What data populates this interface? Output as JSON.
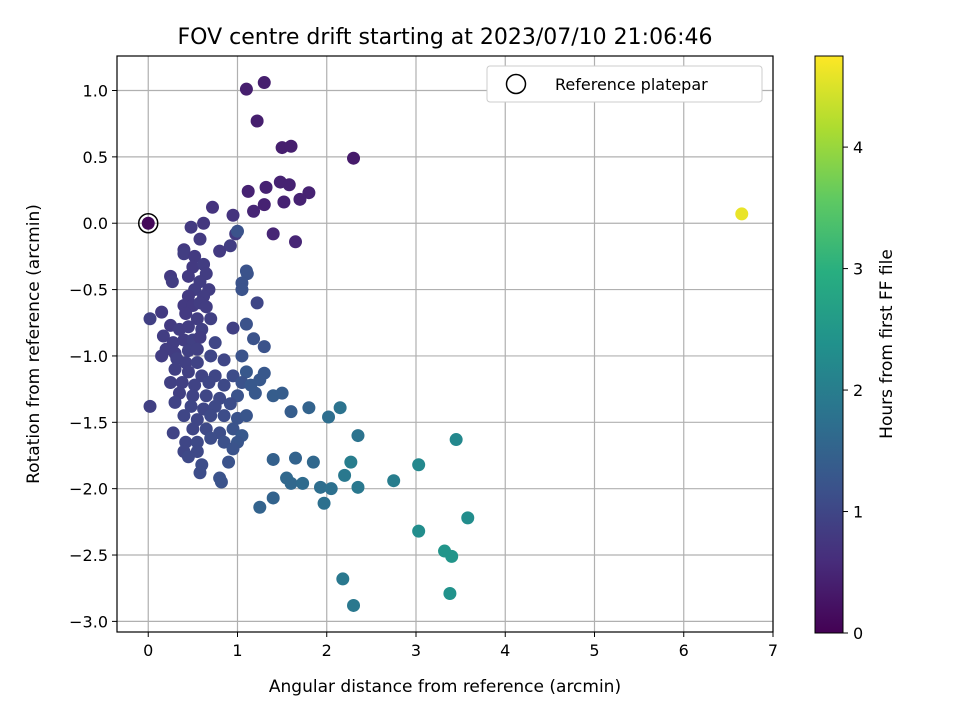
{
  "chart_data": {
    "type": "scatter",
    "title": "FOV centre drift starting at 2023/07/10 21:06:46",
    "xlabel": "Angular distance from reference (arcmin)",
    "ylabel": "Rotation from reference (arcmin)",
    "xlim": [
      -0.35,
      7.0
    ],
    "ylim": [
      -3.08,
      1.26
    ],
    "xticks": [
      0,
      1,
      2,
      3,
      4,
      5,
      6,
      7
    ],
    "yticks": [
      -3.0,
      -2.5,
      -2.0,
      -1.5,
      -1.0,
      -0.5,
      0.0,
      0.5,
      1.0
    ],
    "xtick_labels": [
      "0",
      "1",
      "2",
      "3",
      "4",
      "5",
      "6",
      "7"
    ],
    "ytick_labels": [
      "−3.0",
      "−2.5",
      "−2.0",
      "−1.5",
      "−1.0",
      "−0.5",
      "0.0",
      "0.5",
      "1.0"
    ],
    "grid": true,
    "colormap": "viridis",
    "colorbar": {
      "label": "Hours from first FF file",
      "range": [
        0,
        4.75
      ],
      "ticks": [
        0,
        1,
        2,
        3,
        4
      ],
      "tick_labels": [
        "0",
        "1",
        "2",
        "3",
        "4"
      ]
    },
    "legend": {
      "placement": "top-right",
      "entries": [
        "Reference platepar"
      ]
    },
    "reference_point": {
      "x": 0,
      "y": 0
    },
    "points": [
      [
        1.1,
        1.01,
        0.4
      ],
      [
        1.3,
        1.06,
        0.4
      ],
      [
        1.22,
        0.77,
        0.4
      ],
      [
        1.5,
        0.57,
        0.4
      ],
      [
        1.6,
        0.58,
        0.4
      ],
      [
        2.3,
        0.49,
        0.35
      ],
      [
        1.12,
        0.24,
        0.45
      ],
      [
        1.32,
        0.27,
        0.45
      ],
      [
        1.48,
        0.31,
        0.45
      ],
      [
        1.58,
        0.29,
        0.45
      ],
      [
        1.8,
        0.23,
        0.45
      ],
      [
        1.52,
        0.16,
        0.45
      ],
      [
        1.3,
        0.14,
        0.45
      ],
      [
        1.7,
        0.18,
        0.45
      ],
      [
        1.18,
        0.09,
        0.5
      ],
      [
        1.4,
        -0.08,
        0.5
      ],
      [
        1.65,
        -0.14,
        0.5
      ],
      [
        0.72,
        0.12,
        0.7
      ],
      [
        0.95,
        0.06,
        0.7
      ],
      [
        0.62,
        0.0,
        0.75
      ],
      [
        0.48,
        -0.03,
        0.8
      ],
      [
        0.58,
        -0.12,
        0.8
      ],
      [
        0.98,
        -0.08,
        0.8
      ],
      [
        1.0,
        -0.06,
        1.2
      ],
      [
        0.92,
        -0.17,
        0.85
      ],
      [
        0.4,
        -0.2,
        0.8
      ],
      [
        0.4,
        -0.23,
        0.85
      ],
      [
        0.52,
        -0.25,
        0.8
      ],
      [
        0.8,
        -0.21,
        0.8
      ],
      [
        0.5,
        -0.33,
        0.8
      ],
      [
        0.62,
        -0.31,
        0.85
      ],
      [
        0.25,
        -0.4,
        0.8
      ],
      [
        0.27,
        -0.44,
        0.85
      ],
      [
        0.45,
        -0.4,
        0.8
      ],
      [
        0.65,
        -0.38,
        0.85
      ],
      [
        0.58,
        -0.44,
        0.85
      ],
      [
        1.1,
        -0.36,
        1.2
      ],
      [
        1.11,
        -0.38,
        1.2
      ],
      [
        1.05,
        -0.45,
        1.2
      ],
      [
        0.52,
        -0.5,
        0.85
      ],
      [
        0.68,
        -0.5,
        0.85
      ],
      [
        0.45,
        -0.55,
        0.8
      ],
      [
        0.62,
        -0.55,
        0.85
      ],
      [
        1.05,
        -0.5,
        1.2
      ],
      [
        0.4,
        -0.62,
        0.8
      ],
      [
        0.5,
        -0.62,
        0.8
      ],
      [
        0.58,
        -0.6,
        0.85
      ],
      [
        0.65,
        -0.63,
        0.85
      ],
      [
        1.22,
        -0.6,
        1.0
      ],
      [
        0.15,
        -0.67,
        0.8
      ],
      [
        0.02,
        -0.72,
        0.9
      ],
      [
        0.42,
        -0.68,
        0.8
      ],
      [
        0.55,
        -0.72,
        0.85
      ],
      [
        0.7,
        -0.72,
        0.9
      ],
      [
        0.25,
        -0.77,
        0.8
      ],
      [
        0.35,
        -0.8,
        0.85
      ],
      [
        0.45,
        -0.78,
        0.85
      ],
      [
        0.6,
        -0.8,
        0.9
      ],
      [
        0.95,
        -0.79,
        0.9
      ],
      [
        1.1,
        -0.76,
        1.2
      ],
      [
        0.17,
        -0.85,
        0.85
      ],
      [
        0.28,
        -0.9,
        0.85
      ],
      [
        0.4,
        -0.88,
        0.85
      ],
      [
        0.5,
        -0.88,
        0.9
      ],
      [
        0.58,
        -0.86,
        0.85
      ],
      [
        0.75,
        -0.9,
        1.0
      ],
      [
        1.18,
        -0.87,
        1.2
      ],
      [
        1.3,
        -0.93,
        1.2
      ],
      [
        0.2,
        -0.95,
        0.85
      ],
      [
        0.3,
        -0.98,
        0.85
      ],
      [
        0.45,
        -0.96,
        0.9
      ],
      [
        0.55,
        -0.95,
        0.9
      ],
      [
        0.7,
        -1.0,
        1.0
      ],
      [
        0.15,
        -1.0,
        0.85
      ],
      [
        0.32,
        -1.02,
        0.9
      ],
      [
        0.42,
        -1.05,
        0.9
      ],
      [
        0.55,
        -1.05,
        0.95
      ],
      [
        0.85,
        -1.03,
        1.0
      ],
      [
        1.05,
        -1.0,
        1.2
      ],
      [
        0.3,
        -1.1,
        0.9
      ],
      [
        0.45,
        -1.12,
        0.9
      ],
      [
        0.6,
        -1.15,
        0.95
      ],
      [
        0.75,
        -1.15,
        1.0
      ],
      [
        0.95,
        -1.15,
        1.1
      ],
      [
        1.1,
        -1.12,
        1.3
      ],
      [
        1.3,
        -1.13,
        1.3
      ],
      [
        0.25,
        -1.2,
        0.9
      ],
      [
        0.38,
        -1.2,
        0.9
      ],
      [
        0.52,
        -1.22,
        0.95
      ],
      [
        0.68,
        -1.2,
        1.0
      ],
      [
        0.85,
        -1.22,
        1.05
      ],
      [
        1.05,
        -1.2,
        1.2
      ],
      [
        1.15,
        -1.22,
        1.3
      ],
      [
        1.25,
        -1.18,
        1.3
      ],
      [
        0.35,
        -1.28,
        0.9
      ],
      [
        0.5,
        -1.3,
        0.95
      ],
      [
        0.65,
        -1.3,
        1.0
      ],
      [
        0.8,
        -1.32,
        1.05
      ],
      [
        1.0,
        -1.3,
        1.2
      ],
      [
        1.2,
        -1.28,
        1.3
      ],
      [
        1.4,
        -1.3,
        1.4
      ],
      [
        1.5,
        -1.28,
        1.4
      ],
      [
        0.3,
        -1.35,
        0.95
      ],
      [
        0.48,
        -1.38,
        1.0
      ],
      [
        0.62,
        -1.4,
        1.0
      ],
      [
        0.75,
        -1.38,
        1.05
      ],
      [
        0.92,
        -1.36,
        1.1
      ],
      [
        0.02,
        -1.38,
        0.9
      ],
      [
        0.4,
        -1.45,
        1.0
      ],
      [
        0.55,
        -1.48,
        1.0
      ],
      [
        0.7,
        -1.45,
        1.05
      ],
      [
        0.85,
        -1.45,
        1.1
      ],
      [
        1.0,
        -1.47,
        1.2
      ],
      [
        1.1,
        -1.45,
        1.25
      ],
      [
        1.6,
        -1.42,
        1.4
      ],
      [
        1.8,
        -1.39,
        1.5
      ],
      [
        2.15,
        -1.39,
        1.8
      ],
      [
        2.02,
        -1.46,
        1.7
      ],
      [
        0.5,
        -1.55,
        1.0
      ],
      [
        0.65,
        -1.55,
        1.05
      ],
      [
        0.8,
        -1.58,
        1.1
      ],
      [
        0.95,
        -1.55,
        1.2
      ],
      [
        1.05,
        -1.6,
        1.3
      ],
      [
        0.28,
        -1.58,
        0.95
      ],
      [
        0.42,
        -1.65,
        1.0
      ],
      [
        0.55,
        -1.65,
        1.05
      ],
      [
        0.7,
        -1.62,
        1.1
      ],
      [
        0.85,
        -1.65,
        1.15
      ],
      [
        1.0,
        -1.65,
        1.25
      ],
      [
        2.35,
        -1.6,
        1.8
      ],
      [
        3.45,
        -1.63,
        2.2
      ],
      [
        0.4,
        -1.72,
        1.0
      ],
      [
        0.55,
        -1.72,
        1.05
      ],
      [
        0.95,
        -1.7,
        1.2
      ],
      [
        0.45,
        -1.76,
        1.05
      ],
      [
        1.4,
        -1.78,
        1.45
      ],
      [
        1.65,
        -1.77,
        1.5
      ],
      [
        0.6,
        -1.82,
        1.1
      ],
      [
        0.9,
        -1.8,
        1.2
      ],
      [
        1.85,
        -1.8,
        1.6
      ],
      [
        2.27,
        -1.8,
        2.0
      ],
      [
        0.58,
        -1.88,
        1.1
      ],
      [
        0.8,
        -1.92,
        1.2
      ],
      [
        1.55,
        -1.92,
        1.6
      ],
      [
        2.2,
        -1.9,
        1.9
      ],
      [
        3.03,
        -1.82,
        2.2
      ],
      [
        0.82,
        -1.95,
        1.2
      ],
      [
        1.6,
        -1.96,
        1.6
      ],
      [
        1.73,
        -1.96,
        1.65
      ],
      [
        1.93,
        -1.99,
        1.7
      ],
      [
        2.05,
        -2.0,
        1.75
      ],
      [
        2.35,
        -1.99,
        1.9
      ],
      [
        2.75,
        -1.94,
        2.0
      ],
      [
        1.4,
        -2.07,
        1.5
      ],
      [
        1.97,
        -2.11,
        1.75
      ],
      [
        1.25,
        -2.14,
        1.5
      ],
      [
        3.58,
        -2.22,
        2.3
      ],
      [
        3.03,
        -2.32,
        2.3
      ],
      [
        3.32,
        -2.47,
        2.45
      ],
      [
        3.4,
        -2.51,
        2.45
      ],
      [
        2.18,
        -2.68,
        1.9
      ],
      [
        3.38,
        -2.79,
        2.4
      ],
      [
        2.3,
        -2.88,
        1.9
      ],
      [
        6.65,
        0.07,
        4.6
      ]
    ]
  }
}
